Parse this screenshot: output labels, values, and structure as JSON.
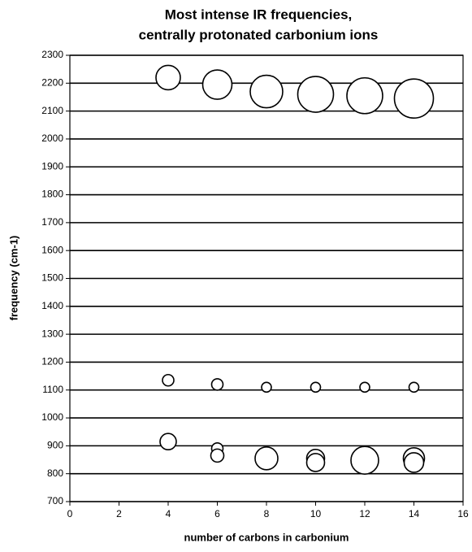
{
  "chart_data": {
    "type": "bubble",
    "title": [
      "Most intense IR frequencies,",
      "centrally protonated carbonium ions"
    ],
    "x_label": "number of carbons in carbonium",
    "y_label": "frequency (cm-1)",
    "x": [
      4,
      6,
      8,
      10,
      12,
      14,
      4,
      6,
      8,
      10,
      12,
      14,
      4,
      6,
      6,
      8,
      10,
      10,
      12,
      14,
      14
    ],
    "values": [
      2220,
      2195,
      2170,
      2160,
      2155,
      2145,
      1135,
      1120,
      1110,
      1110,
      1110,
      1110,
      915,
      890,
      865,
      855,
      855,
      840,
      848,
      855,
      840
    ],
    "sizes": [
      15,
      18,
      20,
      22,
      22,
      24,
      7,
      7,
      6,
      6,
      6,
      6,
      10,
      7,
      8,
      14,
      11,
      11,
      17,
      13,
      12
    ],
    "color": "#ffffff",
    "xlim": [
      0,
      16
    ],
    "xticks": [
      0,
      2,
      4,
      6,
      8,
      10,
      12,
      14,
      16
    ],
    "ylim": [
      700,
      2300
    ],
    "yticks": [
      700,
      800,
      900,
      1000,
      1100,
      1200,
      1300,
      1400,
      1500,
      1600,
      1700,
      1800,
      1900,
      2000,
      2100,
      2200,
      2300
    ],
    "grid": true
  }
}
